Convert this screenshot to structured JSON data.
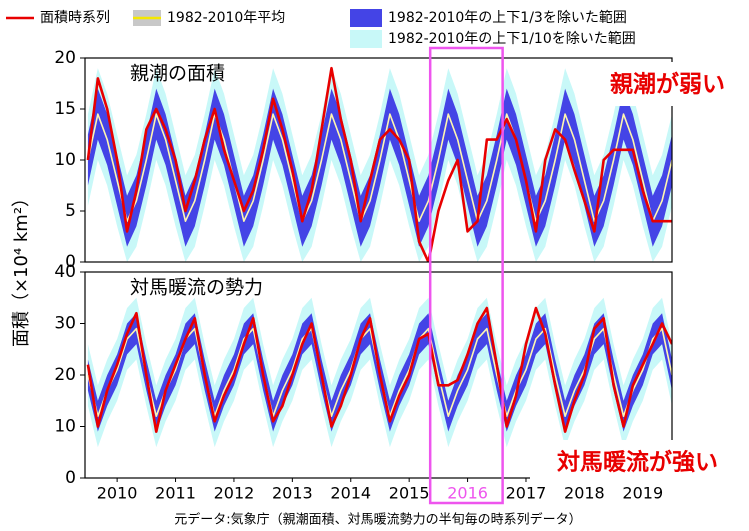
{
  "legend_title_note": null,
  "highlight": {
    "x": [
      2015.86,
      2017.1
    ],
    "color": "#ee55ee"
  },
  "y_label": "面積（×10⁴ km²）",
  "source": "元データ:気象庁（親潮面積、対馬暖流勢力の半旬毎の時系列データ）",
  "chart_data": [
    {
      "type": "line",
      "title": "親潮の面積",
      "annotation": "親潮が弱い",
      "xlim": [
        2009.95,
        2020.0
      ],
      "ylim": [
        0,
        20
      ],
      "yticks": [
        0,
        5,
        10,
        15,
        20
      ],
      "x": [
        2010,
        2010.17,
        2010.33,
        2010.5,
        2010.67,
        2010.83,
        2011,
        2011.17,
        2011.33,
        2011.5,
        2011.67,
        2011.83,
        2012,
        2012.17,
        2012.33,
        2012.5,
        2012.67,
        2012.83,
        2013,
        2013.17,
        2013.33,
        2013.5,
        2013.67,
        2013.83,
        2014,
        2014.17,
        2014.33,
        2014.5,
        2014.67,
        2014.83,
        2015,
        2015.17,
        2015.33,
        2015.5,
        2015.67,
        2015.83,
        2016,
        2016.17,
        2016.33,
        2016.5,
        2016.67,
        2016.83,
        2017,
        2017.17,
        2017.33,
        2017.5,
        2017.67,
        2017.83,
        2018,
        2018.17,
        2018.33,
        2018.5,
        2018.67,
        2018.83,
        2019,
        2019.17,
        2019.33,
        2019.5,
        2019.67,
        2019.83,
        2020
      ],
      "series": [
        {
          "name": "1982-2010年の上下1/10を除いた範囲",
          "color": "#c8f8f8",
          "upper": [
            14.5,
            19,
            16.5,
            12.5,
            8.5,
            10.5,
            14.5,
            19,
            16.5,
            12.5,
            8.5,
            10.5,
            14.5,
            19,
            16.5,
            12.5,
            8.5,
            10.5,
            14.5,
            19,
            16.5,
            12.5,
            8.5,
            10.5,
            14.5,
            19,
            16.5,
            12.5,
            8.5,
            10.5,
            14.5,
            19,
            16.5,
            12.5,
            8.5,
            10.5,
            14.5,
            19,
            16.5,
            12.5,
            8.5,
            10.5,
            14.5,
            19,
            16.5,
            12.5,
            8.5,
            10.5,
            14.5,
            19,
            16.5,
            12.5,
            8.5,
            10.5,
            14.5,
            19,
            16.5,
            12.5,
            8.5,
            10.5,
            14.5
          ],
          "lower": [
            5.5,
            10,
            7.5,
            3.5,
            0,
            1.5,
            5.5,
            10,
            7.5,
            3.5,
            0,
            1.5,
            5.5,
            10,
            7.5,
            3.5,
            0,
            1.5,
            5.5,
            10,
            7.5,
            3.5,
            0,
            1.5,
            5.5,
            10,
            7.5,
            3.5,
            0,
            1.5,
            5.5,
            10,
            7.5,
            3.5,
            0,
            1.5,
            5.5,
            10,
            7.5,
            3.5,
            0,
            1.5,
            5.5,
            10,
            7.5,
            3.5,
            0,
            1.5,
            5.5,
            10,
            7.5,
            3.5,
            0,
            1.5,
            5.5,
            10,
            7.5,
            3.5,
            0,
            1.5,
            5.5
          ]
        },
        {
          "name": "1982-2010年の上下1/3を除いた範囲",
          "color": "#4444e6",
          "upper": [
            12.5,
            17,
            14.5,
            10.5,
            6.5,
            8.5,
            12.5,
            17,
            14.5,
            10.5,
            6.5,
            8.5,
            12.5,
            17,
            14.5,
            10.5,
            6.5,
            8.5,
            12.5,
            17,
            14.5,
            10.5,
            6.5,
            8.5,
            12.5,
            17,
            14.5,
            10.5,
            6.5,
            8.5,
            12.5,
            17,
            14.5,
            10.5,
            6.5,
            8.5,
            12.5,
            17,
            14.5,
            10.5,
            6.5,
            8.5,
            12.5,
            17,
            14.5,
            10.5,
            6.5,
            8.5,
            12.5,
            17,
            14.5,
            10.5,
            6.5,
            8.5,
            12.5,
            17,
            14.5,
            10.5,
            6.5,
            8.5,
            12.5
          ],
          "lower": [
            7.5,
            12,
            9.5,
            5.5,
            1.5,
            3.5,
            7.5,
            12,
            9.5,
            5.5,
            1.5,
            3.5,
            7.5,
            12,
            9.5,
            5.5,
            1.5,
            3.5,
            7.5,
            12,
            9.5,
            5.5,
            1.5,
            3.5,
            7.5,
            12,
            9.5,
            5.5,
            1.5,
            3.5,
            7.5,
            12,
            9.5,
            5.5,
            1.5,
            3.5,
            7.5,
            12,
            9.5,
            5.5,
            1.5,
            3.5,
            7.5,
            12,
            9.5,
            5.5,
            1.5,
            3.5,
            7.5,
            12,
            9.5,
            5.5,
            1.5,
            3.5,
            7.5,
            12,
            9.5,
            5.5,
            1.5,
            3.5,
            7.5
          ]
        },
        {
          "name": "1982-2010年平均",
          "color": "#fff6b0",
          "values": [
            10,
            14.5,
            12,
            8,
            4,
            6,
            10,
            14.5,
            12,
            8,
            4,
            6,
            10,
            14.5,
            12,
            8,
            4,
            6,
            10,
            14.5,
            12,
            8,
            4,
            6,
            10,
            14.5,
            12,
            8,
            4,
            6,
            10,
            14.5,
            12,
            8,
            4,
            6,
            10,
            14.5,
            12,
            8,
            4,
            6,
            10,
            14.5,
            12,
            8,
            4,
            6,
            10,
            14.5,
            12,
            8,
            4,
            6,
            10,
            14.5,
            12,
            8,
            4,
            6,
            10
          ]
        },
        {
          "name": "面積時系列",
          "color": "#e80000",
          "values": [
            10,
            18,
            15,
            10,
            3,
            7,
            13,
            15,
            13,
            10,
            5,
            8,
            12,
            15,
            11,
            8,
            5,
            7,
            11,
            16,
            13,
            9,
            4,
            7,
            13,
            19,
            14,
            10,
            4,
            8,
            12,
            13,
            12,
            10,
            2,
            0,
            5,
            8,
            10,
            3,
            4,
            12,
            12,
            14,
            12,
            8,
            3,
            10,
            13,
            12,
            9,
            6,
            3,
            10,
            11,
            11,
            11,
            7,
            4,
            4,
            4
          ]
        }
      ]
    },
    {
      "type": "line",
      "title": "対馬暖流の勢力",
      "annotation": "対馬暖流が強い",
      "xlim": [
        2009.95,
        2020.0
      ],
      "ylim": [
        0,
        40
      ],
      "yticks": [
        0,
        10,
        20,
        30,
        40
      ],
      "xticks": [
        {
          "value": 2010.5,
          "label": "2010"
        },
        {
          "value": 2011.5,
          "label": "2011"
        },
        {
          "value": 2012.5,
          "label": "2012"
        },
        {
          "value": 2013.5,
          "label": "2013"
        },
        {
          "value": 2014.5,
          "label": "2014"
        },
        {
          "value": 2015.5,
          "label": "2015"
        },
        {
          "value": 2016.5,
          "label": "2016"
        },
        {
          "value": 2017.5,
          "label": "2017"
        },
        {
          "value": 2018.5,
          "label": "2018"
        },
        {
          "value": 2019.5,
          "label": "2019"
        }
      ],
      "x": [
        2010,
        2010.17,
        2010.33,
        2010.5,
        2010.67,
        2010.83,
        2011,
        2011.17,
        2011.33,
        2011.5,
        2011.67,
        2011.83,
        2012,
        2012.17,
        2012.33,
        2012.5,
        2012.67,
        2012.83,
        2013,
        2013.17,
        2013.33,
        2013.5,
        2013.67,
        2013.83,
        2014,
        2014.17,
        2014.33,
        2014.5,
        2014.67,
        2014.83,
        2015,
        2015.17,
        2015.33,
        2015.5,
        2015.67,
        2015.83,
        2016,
        2016.17,
        2016.33,
        2016.5,
        2016.67,
        2016.83,
        2017,
        2017.17,
        2017.33,
        2017.5,
        2017.67,
        2017.83,
        2018,
        2018.17,
        2018.33,
        2018.5,
        2018.67,
        2018.83,
        2019,
        2019.17,
        2019.33,
        2019.5,
        2019.67,
        2019.83,
        2020
      ],
      "series": [
        {
          "color": "#c8f8f8",
          "upper": [
            26,
            18,
            23,
            27,
            33,
            35,
            26,
            18,
            23,
            27,
            33,
            35,
            26,
            18,
            23,
            27,
            33,
            35,
            26,
            18,
            23,
            27,
            33,
            35,
            26,
            18,
            23,
            27,
            33,
            35,
            26,
            18,
            23,
            27,
            33,
            35,
            26,
            18,
            23,
            27,
            33,
            35,
            26,
            18,
            23,
            27,
            33,
            35,
            26,
            18,
            23,
            27,
            33,
            35,
            26,
            18,
            23,
            27,
            33,
            35,
            26
          ],
          "lower": [
            14,
            6,
            11,
            15,
            21,
            23,
            14,
            6,
            11,
            15,
            21,
            23,
            14,
            6,
            11,
            15,
            21,
            23,
            14,
            6,
            11,
            15,
            21,
            23,
            14,
            6,
            11,
            15,
            21,
            23,
            14,
            6,
            11,
            15,
            21,
            23,
            14,
            6,
            11,
            15,
            21,
            23,
            14,
            6,
            11,
            15,
            21,
            23,
            14,
            6,
            11,
            15,
            21,
            23,
            14,
            6,
            11,
            15,
            21,
            23,
            14
          ]
        },
        {
          "color": "#4444e6",
          "upper": [
            23,
            15,
            20,
            24,
            30,
            32,
            23,
            15,
            20,
            24,
            30,
            32,
            23,
            15,
            20,
            24,
            30,
            32,
            23,
            15,
            20,
            24,
            30,
            32,
            23,
            15,
            20,
            24,
            30,
            32,
            23,
            15,
            20,
            24,
            30,
            32,
            23,
            15,
            20,
            24,
            30,
            32,
            23,
            15,
            20,
            24,
            30,
            32,
            23,
            15,
            20,
            24,
            30,
            32,
            23,
            15,
            20,
            24,
            30,
            32,
            23
          ],
          "lower": [
            17,
            9,
            14,
            18,
            24,
            26,
            17,
            9,
            14,
            18,
            24,
            26,
            17,
            9,
            14,
            18,
            24,
            26,
            17,
            9,
            14,
            18,
            24,
            26,
            17,
            9,
            14,
            18,
            24,
            26,
            17,
            9,
            14,
            18,
            24,
            26,
            17,
            9,
            14,
            18,
            24,
            26,
            17,
            9,
            14,
            18,
            24,
            26,
            17,
            9,
            14,
            18,
            24,
            26,
            17,
            9,
            14,
            18,
            24,
            26,
            17
          ]
        },
        {
          "color": "#fff6b0",
          "values": [
            20,
            12,
            17,
            21,
            27,
            29,
            20,
            12,
            17,
            21,
            27,
            29,
            20,
            12,
            17,
            21,
            27,
            29,
            20,
            12,
            17,
            21,
            27,
            29,
            20,
            12,
            17,
            21,
            27,
            29,
            20,
            12,
            17,
            21,
            27,
            29,
            20,
            12,
            17,
            21,
            27,
            29,
            20,
            12,
            17,
            21,
            27,
            29,
            20,
            12,
            17,
            21,
            27,
            29,
            20,
            12,
            17,
            21,
            27,
            29,
            20
          ]
        },
        {
          "color": "#e80000",
          "values": [
            22,
            10,
            17,
            22,
            28,
            32,
            20,
            9,
            17,
            22,
            27,
            31,
            20,
            11,
            16,
            20,
            26,
            31,
            20,
            11,
            14,
            20,
            26,
            30,
            20,
            10,
            14,
            20,
            27,
            31,
            20,
            11,
            16,
            20,
            27,
            28,
            18,
            18,
            19,
            24,
            30,
            33,
            22,
            10,
            16,
            26,
            33,
            28,
            18,
            9,
            15,
            20,
            29,
            31,
            18,
            10,
            18,
            22,
            26,
            30,
            26
          ]
        }
      ]
    }
  ]
}
